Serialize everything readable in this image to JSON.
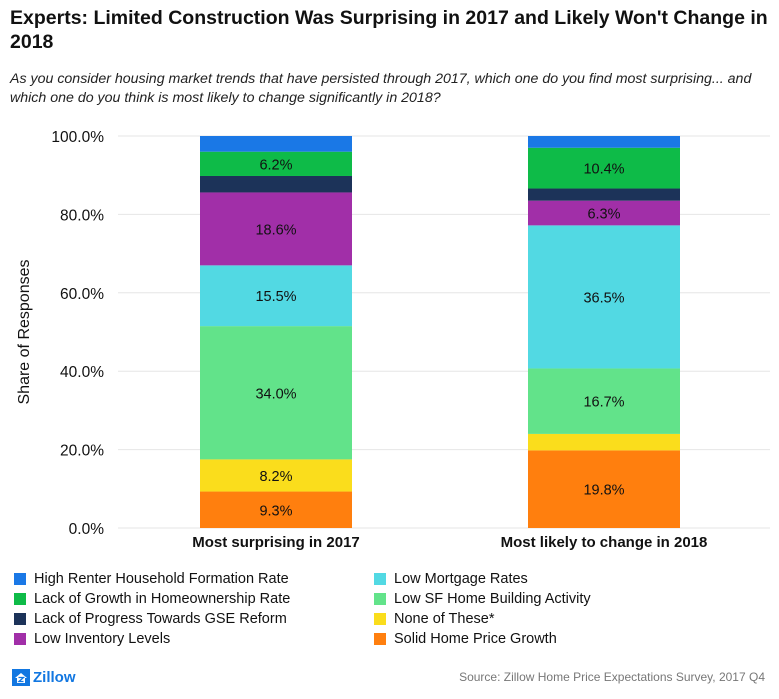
{
  "title": "Experts: Limited Construction Was Surprising in 2017 and Likely Won't Change in 2018",
  "subtitle": "As you consider housing market trends that have persisted through 2017, which one do you find most surprising... and which one do you think is most likely to change significantly in 2018?",
  "source": "Source: Zillow Home Price Expectations Survey, 2017 Q4",
  "logo_text": "Zillow",
  "colors": {
    "High Renter Household Formation Rate": "#1a78e6",
    "Lack of Growth in Homeownership Rate": "#0ebb48",
    "Lack of Progress Towards GSE Reform": "#1c3359",
    "Low Inventory Levels": "#a12fa8",
    "Low Mortgage Rates": "#52d9e3",
    "Low SF Home Building Activity": "#62e38a",
    "None of These*": "#fadd1c",
    "Solid Home Price Growth": "#ff7f0e"
  },
  "legend": [
    "High Renter Household Formation Rate",
    "Low Mortgage Rates",
    "Lack of Growth in Homeownership Rate",
    "Low SF Home Building Activity",
    "Lack of Progress Towards GSE Reform",
    "None of These*",
    "Low Inventory Levels",
    "Solid Home Price Growth"
  ],
  "chart_data": {
    "type": "bar",
    "stacked": true,
    "categories": [
      "Most surprising in 2017",
      "Most likely to change in 2018"
    ],
    "ylabel": "Share of Responses",
    "ylim": [
      0,
      100
    ],
    "yticks": [
      "0.0%",
      "20.0%",
      "40.0%",
      "60.0%",
      "80.0%",
      "100.0%"
    ],
    "legend_position": "bottom",
    "series": [
      {
        "name": "Solid Home Price Growth",
        "values": [
          9.3,
          19.8
        ],
        "labels": [
          "9.3%",
          "19.8%"
        ]
      },
      {
        "name": "None of These*",
        "values": [
          8.2,
          4.2
        ],
        "labels": [
          "8.2%",
          ""
        ]
      },
      {
        "name": "Low SF Home Building Activity",
        "values": [
          34.0,
          16.7
        ],
        "labels": [
          "34.0%",
          "16.7%"
        ]
      },
      {
        "name": "Low Mortgage Rates",
        "values": [
          15.5,
          36.5
        ],
        "labels": [
          "15.5%",
          "36.5%"
        ]
      },
      {
        "name": "Low Inventory Levels",
        "values": [
          18.6,
          6.3
        ],
        "labels": [
          "18.6%",
          "6.3%"
        ]
      },
      {
        "name": "Lack of Progress Towards GSE Reform",
        "values": [
          4.2,
          3.1
        ],
        "labels": [
          "",
          ""
        ]
      },
      {
        "name": "Lack of Growth in Homeownership Rate",
        "values": [
          6.2,
          10.4
        ],
        "labels": [
          "6.2%",
          "10.4%"
        ]
      },
      {
        "name": "High Renter Household Formation Rate",
        "values": [
          4.0,
          3.0
        ],
        "labels": [
          "",
          ""
        ]
      }
    ]
  }
}
